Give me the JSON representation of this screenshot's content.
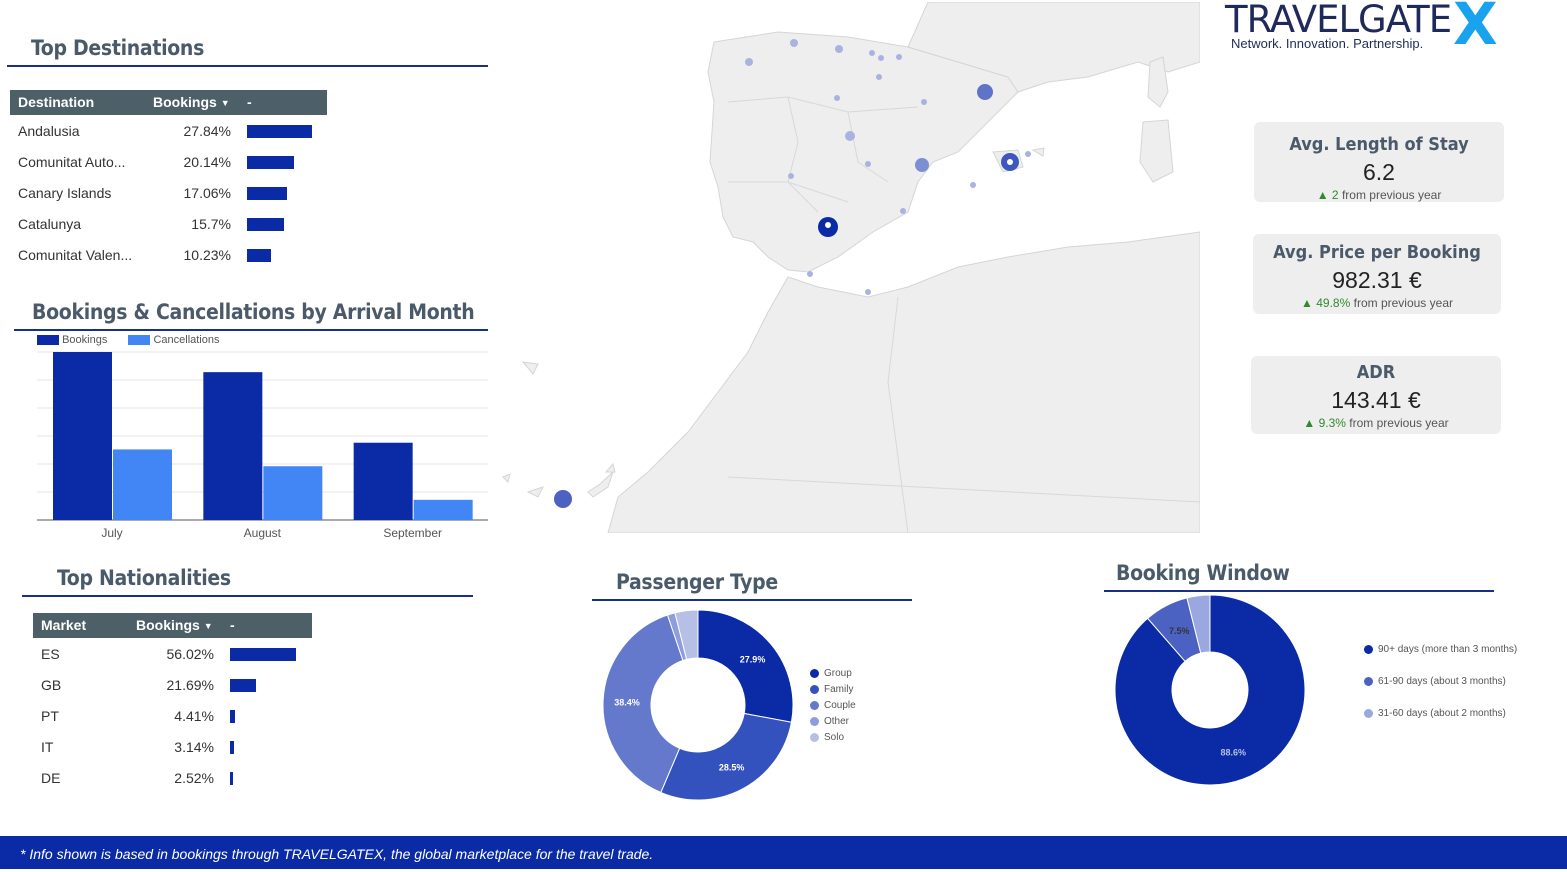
{
  "logo": {
    "brand": "TRAVELGATE",
    "mark": "X",
    "tagline": "Network. Innovation. Partnership."
  },
  "top_destinations": {
    "title": "Top Destinations",
    "columns": [
      "Destination",
      "Bookings",
      "-"
    ],
    "rows": [
      {
        "name": "Andalusia",
        "pct": "27.84%",
        "value": 27.84
      },
      {
        "name": "Comunitat Auto...",
        "pct": "20.14%",
        "value": 20.14
      },
      {
        "name": "Canary Islands",
        "pct": "17.06%",
        "value": 17.06
      },
      {
        "name": "Catalunya",
        "pct": "15.7%",
        "value": 15.7
      },
      {
        "name": "Comunitat Valen...",
        "pct": "10.23%",
        "value": 10.23
      }
    ]
  },
  "bookings_chart": {
    "title": "Bookings & Cancellations by Arrival Month",
    "legend": [
      "Bookings",
      "Cancellations"
    ],
    "colors": [
      "#0a2aa6",
      "#4285f4"
    ]
  },
  "chart_data": [
    {
      "type": "bar",
      "title": "Bookings & Cancellations by Arrival Month",
      "categories": [
        "July",
        "August",
        "September"
      ],
      "series": [
        {
          "name": "Bookings",
          "values": [
            100,
            88,
            46
          ]
        },
        {
          "name": "Cancellations",
          "values": [
            42,
            32,
            12
          ]
        }
      ],
      "ylim": [
        0,
        100
      ],
      "grid": true,
      "legend": "top-left"
    },
    {
      "type": "pie",
      "title": "Passenger Type",
      "labels": [
        "Group",
        "Family",
        "Couple",
        "Other",
        "Solo"
      ],
      "values": [
        27.9,
        28.5,
        38.4,
        1.3,
        3.9
      ],
      "data_labels": [
        "27.9%",
        "28.5%",
        "38.4%",
        "",
        ""
      ],
      "legend": "right"
    },
    {
      "type": "pie",
      "title": "Booking Window",
      "labels": [
        "90+ days (more than 3 months)",
        "61-90 days (about 3 months)",
        "31-60 days (about 2 months)"
      ],
      "values": [
        88.6,
        7.5,
        3.9
      ],
      "data_labels": [
        "88.6%",
        "7.5%",
        ""
      ],
      "legend": "right"
    }
  ],
  "kpis": [
    {
      "title": "Avg. Length of Stay",
      "value": "6.2",
      "delta": "2",
      "delta_suffix": " from previous year"
    },
    {
      "title": "Avg. Price per Booking",
      "value": "982.31 €",
      "delta": "49.8%",
      "delta_suffix": " from previous year"
    },
    {
      "title": "ADR",
      "value": "143.41 €",
      "delta": "9.3%",
      "delta_suffix": " from previous year"
    }
  ],
  "top_nationalities": {
    "title": "Top Nationalities",
    "columns": [
      "Market",
      "Bookings",
      "-"
    ],
    "rows": [
      {
        "name": "ES",
        "pct": "56.02%",
        "value": 56.02
      },
      {
        "name": "GB",
        "pct": "21.69%",
        "value": 21.69
      },
      {
        "name": "PT",
        "pct": "4.41%",
        "value": 4.41
      },
      {
        "name": "IT",
        "pct": "3.14%",
        "value": 3.14
      },
      {
        "name": "DE",
        "pct": "2.52%",
        "value": 2.52
      }
    ]
  },
  "passenger_type": {
    "title": "Passenger Type",
    "colors": [
      "#0a2aa6",
      "#3452bd",
      "#6479cc",
      "#8e9ddb",
      "#b6c0e6"
    ]
  },
  "booking_window": {
    "title": "Booking Window",
    "colors": [
      "#0a2aa6",
      "#4c62c2",
      "#9aa8df"
    ]
  },
  "footer": {
    "note": "* Info shown is based in bookings through TRAVELGATEX, the global marketplace for the travel trade."
  }
}
